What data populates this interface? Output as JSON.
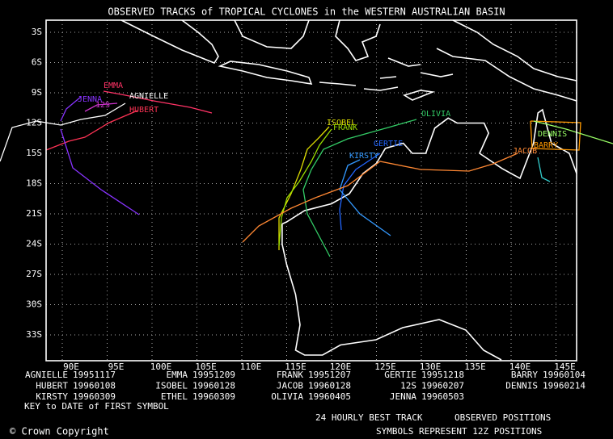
{
  "title": "OBSERVED TRACKS of TROPICAL CYCLONES in the WESTERN AUSTRALIAN BASIN",
  "map": {
    "lat_labels": [
      "3S",
      "6S",
      "9S",
      "12S",
      "15S",
      "18S",
      "21S",
      "24S",
      "27S",
      "30S",
      "33S"
    ],
    "lon_labels": [
      "90E",
      "95E",
      "100E",
      "105E",
      "110E",
      "115E",
      "120E",
      "125E",
      "130E",
      "135E",
      "140E",
      "145E"
    ],
    "track_labels": [
      "EMMA",
      "AGNIELLE",
      "JENNA",
      "12S",
      "HUBERT",
      "ISOBEL",
      "FRANK",
      "OLIVIA",
      "GERTIE",
      "KIRSTY",
      "BARRY",
      "DENNIS",
      "JACOB"
    ]
  },
  "legend": [
    [
      {
        "name": "AGNIELLE",
        "date": "19951117"
      },
      {
        "name": "EMMA",
        "date": "19951209"
      },
      {
        "name": "FRANK",
        "date": "19951207"
      },
      {
        "name": "GERTIE",
        "date": "19951218"
      },
      {
        "name": "BARRY",
        "date": "19960104"
      }
    ],
    [
      {
        "name": "HUBERT",
        "date": "19960108"
      },
      {
        "name": "ISOBEL",
        "date": "19960128"
      },
      {
        "name": "JACOB",
        "date": "19960128"
      },
      {
        "name": "12S",
        "date": "19960207"
      },
      {
        "name": "DENNIS",
        "date": "19960214"
      }
    ],
    [
      {
        "name": "KIRSTY",
        "date": "19960309"
      },
      {
        "name": "ETHEL",
        "date": "19960309"
      },
      {
        "name": "OLIVIA",
        "date": "19960405"
      },
      {
        "name": "JENNA",
        "date": "19960503"
      }
    ]
  ],
  "key_label": "KEY to DATE of FIRST SYMBOL",
  "footer": {
    "copyright": "© Crown Copyright",
    "track_note": "24 HOURLY BEST TRACK",
    "positions_note": "OBSERVED POSITIONS",
    "symbols_note": "SYMBOLS REPRESENT 12Z POSITIONS"
  }
}
